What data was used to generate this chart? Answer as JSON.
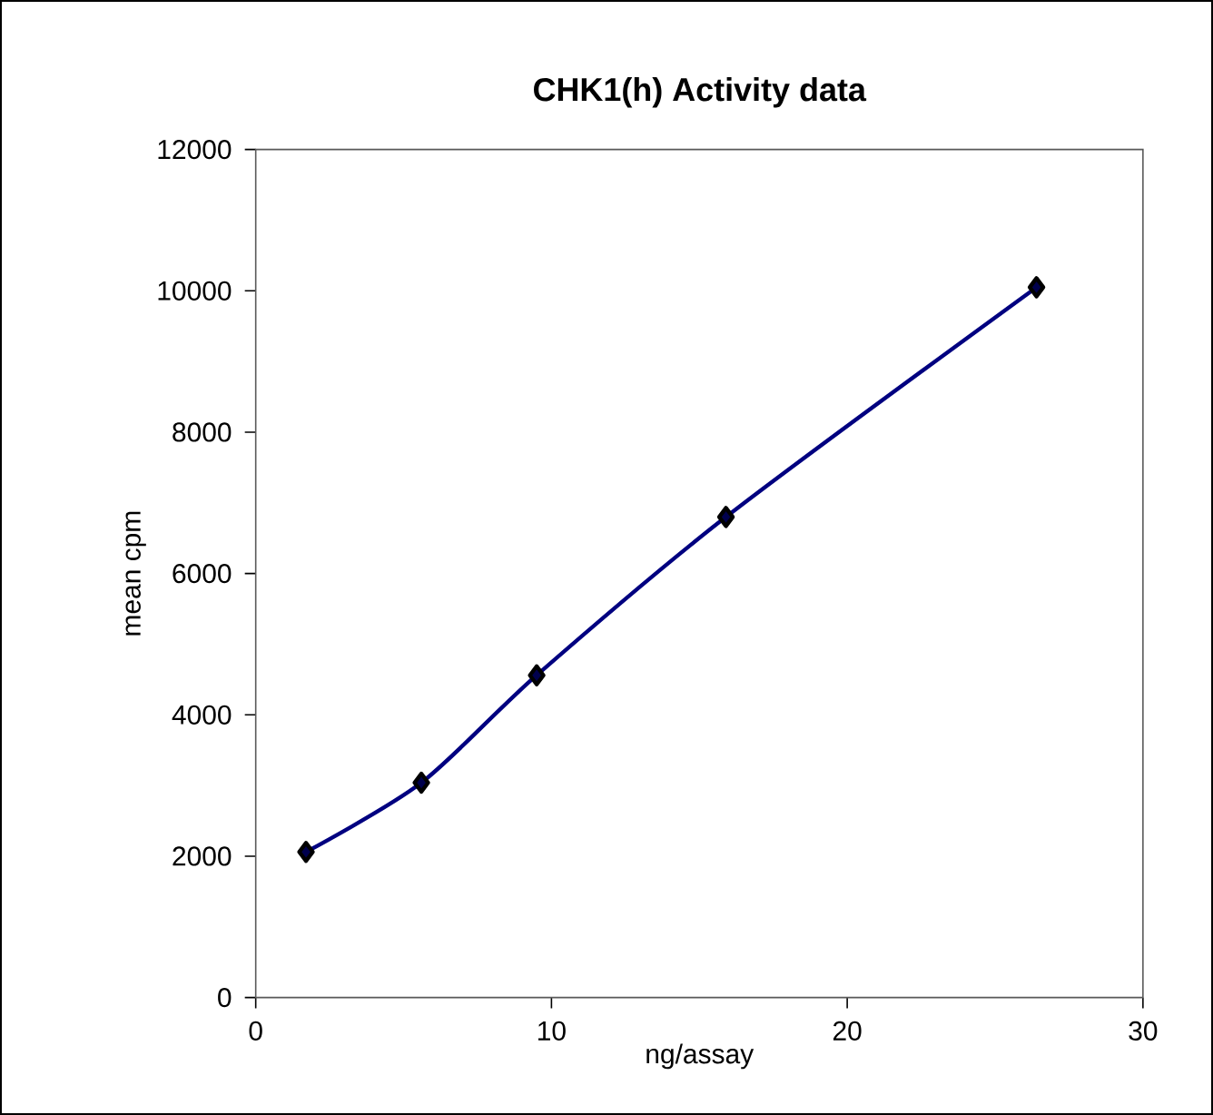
{
  "chart_data": {
    "type": "line",
    "title": "CHK1(h) Activity data",
    "xlabel": "ng/assay",
    "ylabel": "mean cpm",
    "x": [
      1.7,
      5.6,
      9.5,
      15.9,
      26.4
    ],
    "series": [
      {
        "color": "#000080",
        "values": [
          2060,
          3040,
          4560,
          6800,
          10050
        ]
      }
    ],
    "xlim": [
      0,
      30
    ],
    "xticks": [
      0,
      10,
      20,
      30
    ],
    "ylim": [
      0,
      12000
    ],
    "yticks": [
      0,
      2000,
      4000,
      6000,
      8000,
      10000,
      12000
    ],
    "marker": "diamond",
    "grid": false
  }
}
